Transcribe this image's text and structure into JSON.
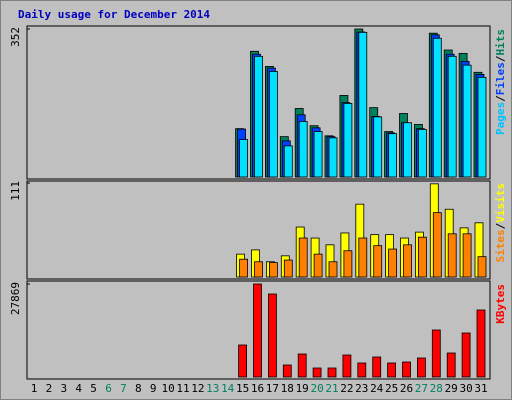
{
  "chart_data": {
    "type": "bar",
    "title": "Daily usage for December 2014",
    "title_color": "#0000c0",
    "categories": [
      "1",
      "2",
      "3",
      "4",
      "5",
      "6",
      "7",
      "8",
      "9",
      "10",
      "11",
      "12",
      "13",
      "14",
      "15",
      "16",
      "17",
      "18",
      "19",
      "20",
      "21",
      "22",
      "23",
      "24",
      "25",
      "26",
      "27",
      "28",
      "29",
      "30",
      "31"
    ],
    "category_colors": [
      "#000000",
      "#000000",
      "#000000",
      "#000000",
      "#000000",
      "#00805c",
      "#00805c",
      "#000000",
      "#000000",
      "#000000",
      "#000000",
      "#000000",
      "#00805c",
      "#00805c",
      "#000000",
      "#000000",
      "#000000",
      "#000000",
      "#000000",
      "#00805c",
      "#00805c",
      "#000000",
      "#000000",
      "#000000",
      "#000000",
      "#000000",
      "#00805c",
      "#00805c",
      "#000000",
      "#000000",
      "#000000"
    ],
    "legend_separator": "/",
    "panels": [
      {
        "ylim": [
          0,
          352
        ],
        "yticks": [
          352
        ],
        "series": [
          {
            "name": "Hits",
            "color": "#00805c",
            "label_color": "#00805c",
            "values": [
              0,
              0,
              0,
              0,
              0,
              0,
              0,
              0,
              0,
              0,
              0,
              0,
              0,
              0,
              115,
              299,
              263,
              96,
              163,
              122,
              98,
              194,
              352,
              165,
              108,
              151,
              125,
              342,
              302,
              294,
              249
            ]
          },
          {
            "name": "Files",
            "color": "#0040ff",
            "label_color": "#0040ff",
            "values": [
              0,
              0,
              0,
              0,
              0,
              0,
              0,
              0,
              0,
              0,
              0,
              0,
              0,
              0,
              114,
              292,
              259,
              86,
              148,
              117,
              96,
              177,
              345,
              144,
              105,
              129,
              115,
              338,
              292,
              275,
              244
            ]
          },
          {
            "name": "Pages",
            "color": "#00e0ff",
            "label_color": "#00c0ff",
            "values": [
              0,
              0,
              0,
              0,
              0,
              0,
              0,
              0,
              0,
              0,
              0,
              0,
              0,
              0,
              89,
              287,
              251,
              74,
              132,
              108,
              93,
              175,
              344,
              143,
              103,
              129,
              113,
              330,
              287,
              266,
              237
            ]
          }
        ]
      },
      {
        "ylim": [
          0,
          111
        ],
        "yticks": [
          111
        ],
        "series": [
          {
            "name": "Visits",
            "color": "#ffff00",
            "label_color": "#ffff00",
            "values": [
              0,
              0,
              0,
              0,
              0,
              0,
              0,
              0,
              0,
              0,
              0,
              0,
              0,
              0,
              27,
              32,
              18,
              25,
              59,
              46,
              38,
              52,
              86,
              50,
              50,
              46,
              53,
              110,
              80,
              58,
              64
            ]
          },
          {
            "name": "Sites",
            "color": "#ff8000",
            "label_color": "#ff8000",
            "values": [
              0,
              0,
              0,
              0,
              0,
              0,
              0,
              0,
              0,
              0,
              0,
              0,
              0,
              0,
              21,
              18,
              17,
              20,
              46,
              27,
              18,
              31,
              46,
              37,
              33,
              38,
              47,
              76,
              51,
              51,
              24
            ]
          }
        ]
      },
      {
        "ylim": [
          0,
          27869
        ],
        "yticks": [
          27869
        ],
        "series": [
          {
            "name": "KBytes",
            "color": "#ff0000",
            "label_color": "#ff0000",
            "values": [
              0,
              0,
              0,
              0,
              0,
              0,
              0,
              0,
              0,
              0,
              0,
              0,
              0,
              0,
              9589,
              27869,
              24872,
              3596,
              6892,
              2697,
              2697,
              6592,
              4195,
              5993,
              4195,
              4495,
              5694,
              14084,
              7192,
              13185,
              20077
            ]
          }
        ]
      }
    ]
  }
}
